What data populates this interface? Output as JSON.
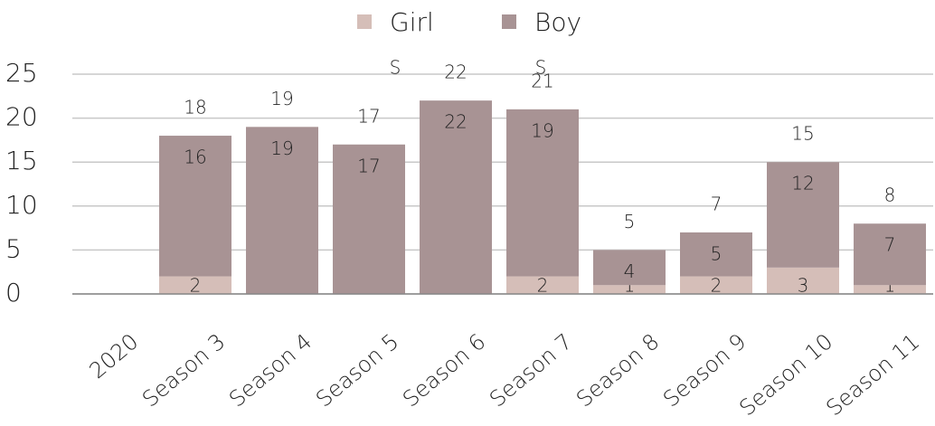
{
  "chart_data": {
    "type": "stacked_bar",
    "categories": [
      "2020",
      "Season 3",
      "Season 4",
      "Season 5",
      "Season 6",
      "Season 7",
      "Season 8",
      "Season 9",
      "Season 10",
      "Season 11"
    ],
    "series": [
      {
        "name": "Girl",
        "color": "#d5beb8",
        "values": [
          null,
          2,
          0,
          0,
          0,
          2,
          1,
          2,
          3,
          1
        ]
      },
      {
        "name": "Boy",
        "color": "#a89394",
        "values": [
          null,
          16,
          19,
          17,
          22,
          19,
          4,
          5,
          12,
          7
        ]
      }
    ],
    "totals": [
      null,
      18,
      19,
      17,
      22,
      21,
      5,
      7,
      15,
      8
    ],
    "annotations": [
      "S",
      "S"
    ],
    "ylim": [
      0,
      25
    ],
    "yticks": [
      0,
      5,
      10,
      15,
      20,
      25
    ],
    "grid": true,
    "legend": "top"
  }
}
